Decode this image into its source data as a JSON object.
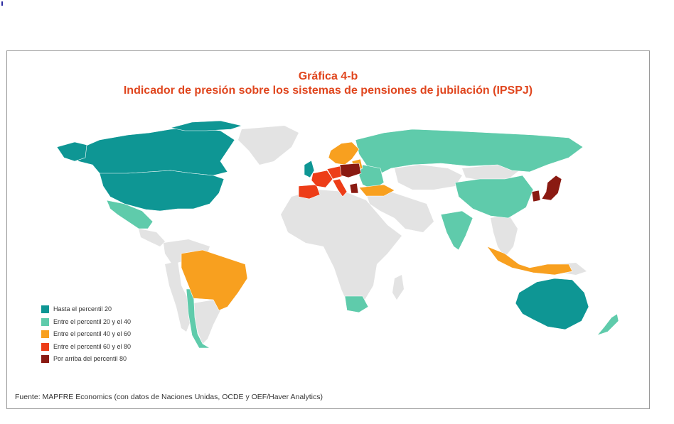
{
  "title_line1": "Gráfica 4-b",
  "title_line2": "Indicador de presión sobre los sistemas de pensiones de jubilación (IPSPJ)",
  "legend": [
    {
      "label": "Hasta el percentil 20",
      "color": "#0e9694"
    },
    {
      "label": "Entre el percentil 20 y el 40",
      "color": "#5fcbab"
    },
    {
      "label": "Entre el percentil 40 y el 60",
      "color": "#f8a01f"
    },
    {
      "label": "Entre el percentil 60 y el 80",
      "color": "#ed3d18"
    },
    {
      "label": "Por arriba del percentil 80",
      "color": "#8a1a12"
    }
  ],
  "no_data_color": "#e3e3e3",
  "source": "Fuente: MAPFRE Economics (con datos de Naciones Unidas, OCDE y OEF/Haver Analytics)",
  "regions": {
    "canada": "p20",
    "united-states": "p20",
    "australia": "p20",
    "ireland-uk": "p20",
    "mexico": "p20-40",
    "russia": "p20-40",
    "china": "p20-40",
    "india": "p20-40",
    "south-africa": "p20-40",
    "chile-argentina": "p20-40",
    "new-zealand": "p20-40",
    "eastern-europe": "p20-40",
    "brazil": "p40-60",
    "indonesia": "p40-60",
    "turkey": "p40-60",
    "scandinavia": "p40-60",
    "baltics": "p40-60",
    "spain-portugal": "p60-80",
    "france": "p60-80",
    "italy": "p60-80",
    "central-europe": "p60-80",
    "japan": "p80+",
    "korea": "p80+",
    "germany-poland": "p80+",
    "greece": "p80+"
  }
}
